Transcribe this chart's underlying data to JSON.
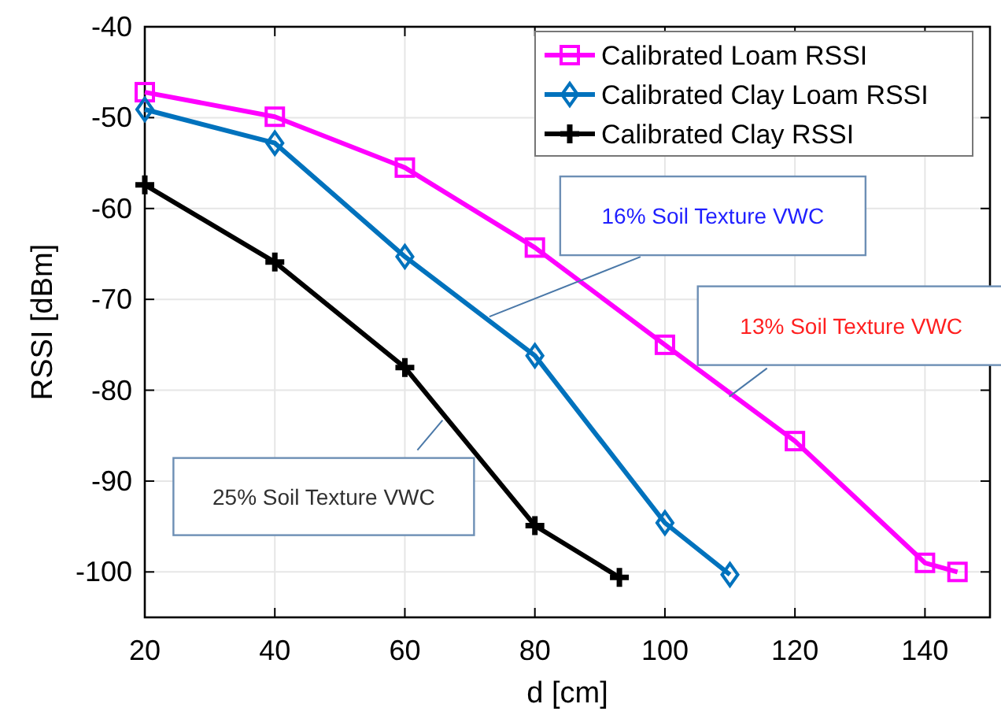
{
  "chart_data": {
    "type": "line",
    "xlabel": "d [cm]",
    "ylabel": "RSSI [dBm]",
    "xlim": [
      20,
      150
    ],
    "xticks": [
      20,
      40,
      60,
      80,
      100,
      120,
      140
    ],
    "ylim": [
      -105,
      -40
    ],
    "yticks": [
      -100,
      -90,
      -80,
      -70,
      -60,
      -50,
      -40
    ],
    "grid": true,
    "legend": "top right",
    "series": [
      {
        "name": "Calibrated Loam RSSI",
        "color": "#ff00ff",
        "marker": "square",
        "x": [
          20,
          40,
          60,
          80,
          100,
          120,
          140,
          145
        ],
        "values": [
          -47.2,
          -49.9,
          -55.5,
          -64.3,
          -75,
          -85.6,
          -99,
          -100
        ]
      },
      {
        "name": "Calibrated Clay Loam RSSI",
        "color": "#0072bd",
        "marker": "diamond",
        "x": [
          20,
          40,
          60,
          80,
          100,
          110
        ],
        "values": [
          -49.1,
          -52.8,
          -65.3,
          -76.2,
          -94.6,
          -100.3
        ]
      },
      {
        "name": "Calibrated Clay RSSI",
        "color": "#000000",
        "marker": "cross",
        "x": [
          20,
          40,
          60,
          80,
          93
        ],
        "values": [
          -57.4,
          -65.9,
          -77.5,
          -94.9,
          -100.6
        ]
      }
    ],
    "annotations": [
      {
        "text": "16% Soil Texture VWC",
        "x": 73,
        "y": -71.9
      },
      {
        "text": "13% Soil Texture VWC",
        "x": 109.9,
        "y": -80.7
      },
      {
        "text": "25% Soil Texture VWC",
        "x": 65.8,
        "y": -83.3
      }
    ]
  }
}
